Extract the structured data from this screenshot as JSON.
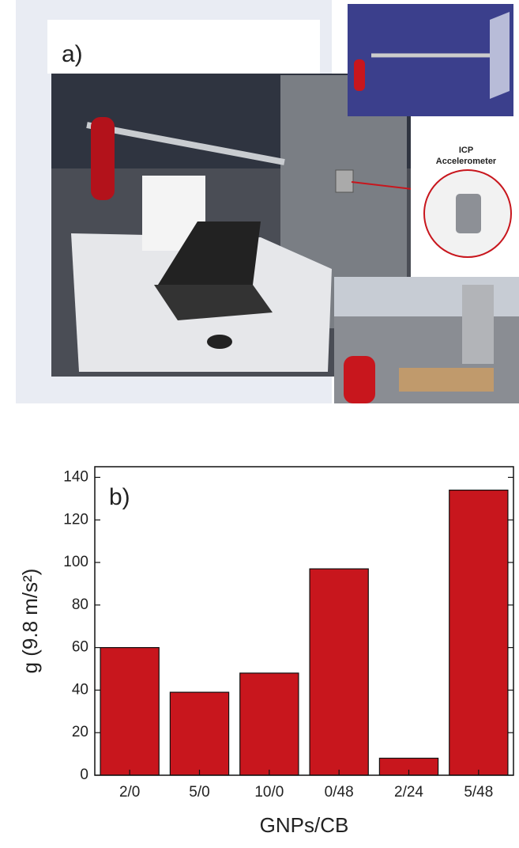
{
  "panel_a": {
    "label": "a)",
    "callout": [
      "ICP",
      "Accelerometer"
    ]
  },
  "chart_data": {
    "type": "bar",
    "annotation": "b)",
    "x_label": "GNPs/CB",
    "y_label": "g (9.8 m/s²)",
    "categories": [
      "2/0",
      "5/0",
      "10/0",
      "0/48",
      "2/24",
      "5/48"
    ],
    "values": [
      60,
      39,
      48,
      97,
      8,
      134
    ],
    "color": "#c8161d",
    "ylim": [
      0,
      145
    ],
    "yticks": [
      0,
      20,
      40,
      60,
      80,
      100,
      120,
      140
    ]
  }
}
